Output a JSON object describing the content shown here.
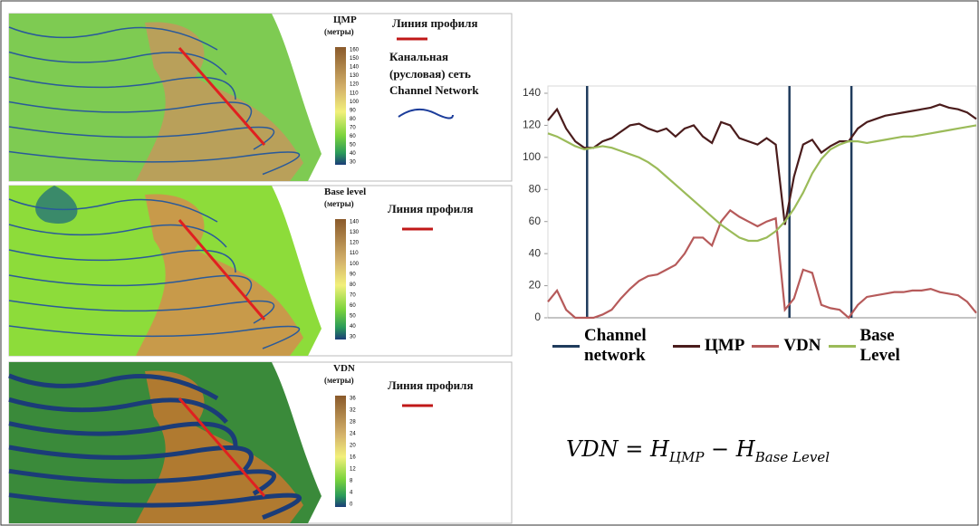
{
  "panels": [
    {
      "title": "ЦМР",
      "unit": "(метры)",
      "colorbar_ticks": [
        160,
        150,
        140,
        130,
        120,
        110,
        100,
        90,
        80,
        70,
        60,
        50,
        40,
        30
      ],
      "profile_label": "Линия профиля",
      "network_label": "Канальная (русловая) сеть",
      "network_label_en": "Channel Network"
    },
    {
      "title": "Base level",
      "unit": "(метры)",
      "colorbar_ticks": [
        140,
        130,
        120,
        110,
        100,
        90,
        80,
        70,
        60,
        50,
        40,
        30
      ],
      "profile_label": "Линия профиля"
    },
    {
      "title": "VDN",
      "unit": "(метры)",
      "colorbar_ticks": [
        36,
        32,
        28,
        24,
        20,
        16,
        12,
        8,
        4,
        0
      ],
      "profile_label": "Линия профиля"
    }
  ],
  "chart_data": {
    "type": "line",
    "xlim": [
      0,
      47
    ],
    "ylim": [
      0,
      140
    ],
    "yticks": [
      0,
      20,
      40,
      60,
      80,
      100,
      120,
      140
    ],
    "grid": false,
    "channel_network": {
      "name": "Channel network",
      "color": "#1f3b5c",
      "x": [
        4.3,
        26.5,
        33.3
      ]
    },
    "series": [
      {
        "name": "ЦМР",
        "color": "#4a1c1c",
        "values": [
          123,
          130,
          118,
          110,
          106,
          106,
          110,
          112,
          116,
          120,
          121,
          118,
          116,
          118,
          113,
          118,
          120,
          113,
          109,
          122,
          120,
          112,
          110,
          108,
          112,
          108,
          58,
          88,
          108,
          111,
          103,
          107,
          110,
          110,
          118,
          122,
          124,
          126,
          127,
          128,
          129,
          130,
          131,
          133,
          131,
          130,
          128,
          124
        ]
      },
      {
        "name": "VDN",
        "color": "#b65a5a",
        "values": [
          10,
          17,
          5,
          0,
          0,
          0,
          2,
          5,
          12,
          18,
          23,
          26,
          27,
          30,
          33,
          40,
          50,
          50,
          45,
          60,
          67,
          63,
          60,
          57,
          60,
          62,
          5,
          12,
          30,
          28,
          8,
          6,
          5,
          0,
          8,
          13,
          14,
          15,
          16,
          16,
          17,
          17,
          18,
          16,
          15,
          14,
          10,
          3
        ]
      },
      {
        "name": "Base Level",
        "color": "#9bbb59",
        "values": [
          115,
          113,
          110,
          107,
          105,
          106,
          107,
          106,
          104,
          102,
          100,
          97,
          93,
          88,
          83,
          78,
          73,
          68,
          63,
          58,
          54,
          50,
          48,
          48,
          50,
          54,
          60,
          68,
          78,
          90,
          99,
          105,
          108,
          110,
          110,
          109,
          110,
          111,
          112,
          113,
          113,
          114,
          115,
          116,
          117,
          118,
          119,
          120
        ]
      }
    ]
  },
  "formula": [
    "VDN = H",
    "ЦМР",
    " − H",
    "Base Level"
  ]
}
